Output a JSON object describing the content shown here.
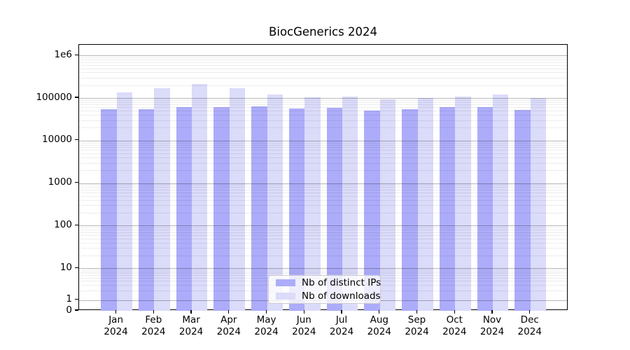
{
  "chart_data": {
    "type": "bar",
    "title": "BiocGenerics 2024",
    "categories": [
      "Jan",
      "Feb",
      "Mar",
      "Apr",
      "May",
      "Jun",
      "Jul",
      "Aug",
      "Sep",
      "Oct",
      "Nov",
      "Dec"
    ],
    "year_label": "2024",
    "series": [
      {
        "name": "Nb of distinct IPs",
        "color": "#acacfa",
        "values": [
          54000,
          54000,
          61000,
          60000,
          63000,
          56000,
          58000,
          50000,
          55000,
          62000,
          62000,
          53000
        ]
      },
      {
        "name": "Nb of downloads",
        "color": "#dbdbfa",
        "values": [
          135000,
          168000,
          212000,
          173000,
          123000,
          103000,
          106000,
          93000,
          101000,
          109000,
          123000,
          101000
        ]
      }
    ],
    "yscale": "symlog",
    "ylim": [
      0,
      1780000
    ],
    "yticks": [
      {
        "label": "1e6",
        "value": 1000000
      },
      {
        "label": "100000",
        "value": 100000
      },
      {
        "label": "10000",
        "value": 10000
      },
      {
        "label": "1000",
        "value": 1000
      },
      {
        "label": "100",
        "value": 100
      },
      {
        "label": "10",
        "value": 10
      },
      {
        "label": "1",
        "value": 1
      },
      {
        "label": "0",
        "value": 0
      }
    ],
    "grid": {
      "major_color": "rgba(0,0,0,0.28)",
      "minor_color": "rgba(0,0,0,0.07)"
    },
    "legend": {
      "position": "lower center"
    }
  }
}
